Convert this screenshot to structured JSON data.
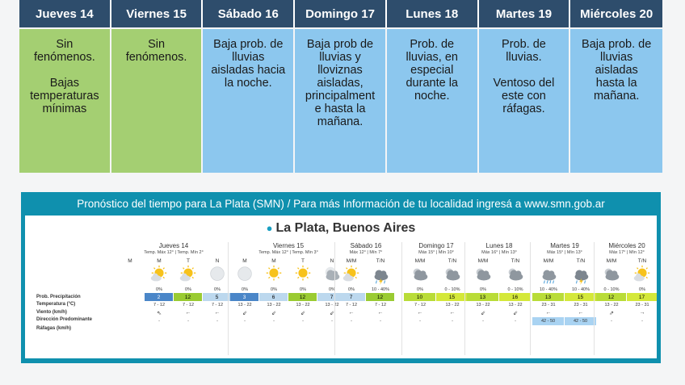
{
  "top_table": {
    "days": [
      {
        "name": "Jueves 14",
        "text": "Sin\nfenómenos.\n\nBajas\ntemperaturas\nmínimas",
        "color": "#a4cf72"
      },
      {
        "name": "Viernes 15",
        "text": "Sin\nfenómenos.",
        "color": "#a4cf72"
      },
      {
        "name": "Sábado 16",
        "text": "Baja prob. de\nlluvias\naisladas hacia\nla noche.",
        "color": "#8cc7ee"
      },
      {
        "name": "Domingo 17",
        "text": "Baja prob de\nlluvias y\nlloviznas\naisladas,\nprincipalment\ne hasta la\nmañana.",
        "color": "#8cc7ee"
      },
      {
        "name": "Lunes 18",
        "text": "Prob. de\nlluvias, en\nespecial\ndurante la\nnoche.",
        "color": "#8cc7ee"
      },
      {
        "name": "Martes 19",
        "text": "Prob. de\nlluvias.\n\nVentoso del\neste con\nráfagas.",
        "color": "#8cc7ee"
      },
      {
        "name": "Miércoles 20",
        "text": "Baja prob. de\nlluvias\naisladas\nhasta la\nmañana.",
        "color": "#8cc7ee"
      }
    ]
  },
  "forecast": {
    "banner": "Pronóstico del tiempo para La Plata (SMN) / Para más Información de tu localidad ingresá a www.smn.gob.ar",
    "city": "La Plata, Buenos Aires",
    "row_labels": [
      "Prob. Precipitación",
      "Temperatura (°C)",
      "Viento (km/h)",
      "Dirección Predominante",
      "Ráfagas (km/h)"
    ],
    "days": [
      {
        "name": "Jueves 14",
        "temps": "Temp. Máx 12° | Temp. Mín 2°",
        "periods": [
          {
            "label": "M",
            "icon": "blank-icon",
            "prob": "",
            "temp": "",
            "tcolor": "#fff",
            "wind": "",
            "dir": "",
            "gust": ""
          },
          {
            "label": "M",
            "icon": "sun-cloud-icon",
            "prob": "0%",
            "temp": "2",
            "tcolor": "#4a86c8",
            "wind": "7 - 12",
            "dir": "⇖",
            "gust": "-"
          },
          {
            "label": "T",
            "icon": "sun-cloud-icon",
            "prob": "0%",
            "temp": "12",
            "tcolor": "#9acb32",
            "wind": "7 - 12",
            "dir": "←",
            "gust": "-"
          },
          {
            "label": "N",
            "icon": "moon-icon",
            "prob": "0%",
            "temp": "5",
            "tcolor": "#bcd8ee",
            "wind": "7 - 12",
            "dir": "←",
            "gust": "-"
          }
        ]
      },
      {
        "name": "Viernes 15",
        "temps": "Temp. Máx 12° | Temp. Mín 3°",
        "periods": [
          {
            "label": "M",
            "icon": "moon-icon",
            "prob": "0%",
            "temp": "3",
            "tcolor": "#4a86c8",
            "wind": "13 - 22",
            "dir": "⇙",
            "gust": "-"
          },
          {
            "label": "M",
            "icon": "sun-icon",
            "prob": "0%",
            "temp": "6",
            "tcolor": "#bcd8ee",
            "wind": "13 - 22",
            "dir": "⇙",
            "gust": "-"
          },
          {
            "label": "T",
            "icon": "sun-icon",
            "prob": "0%",
            "temp": "12",
            "tcolor": "#9acb32",
            "wind": "13 - 22",
            "dir": "⇙",
            "gust": "-"
          },
          {
            "label": "N",
            "icon": "moon-cloud-icon",
            "prob": "0%",
            "temp": "7",
            "tcolor": "#bcd8ee",
            "wind": "13 - 22",
            "dir": "⇙",
            "gust": "-"
          }
        ]
      },
      {
        "name": "Sábado 16",
        "temps": "Máx 12° | Mín 7°",
        "periods": [
          {
            "label": "M/M",
            "icon": "sun-cloud-icon",
            "prob": "0%",
            "temp": "7",
            "tcolor": "#bcd8ee",
            "wind": "7 - 12",
            "dir": "←",
            "gust": "-"
          },
          {
            "label": "T/N",
            "icon": "rain-storm-icon",
            "prob": "10 - 40%",
            "temp": "12",
            "tcolor": "#9acb32",
            "wind": "7 - 12",
            "dir": "←",
            "gust": "-"
          }
        ]
      },
      {
        "name": "Domingo 17",
        "temps": "Máx 15° | Mín 10°",
        "periods": [
          {
            "label": "M/M",
            "icon": "cloud-icon",
            "prob": "0%",
            "temp": "10",
            "tcolor": "#b9dc38",
            "wind": "7 - 12",
            "dir": "←",
            "gust": "-"
          },
          {
            "label": "T/N",
            "icon": "cloud-icon",
            "prob": "0 - 10%",
            "temp": "15",
            "tcolor": "#d4e83a",
            "wind": "13 - 22",
            "dir": "←",
            "gust": "-"
          }
        ]
      },
      {
        "name": "Lunes 18",
        "temps": "Máx 16° | Mín 13°",
        "periods": [
          {
            "label": "M/M",
            "icon": "cloud-icon",
            "prob": "0%",
            "temp": "13",
            "tcolor": "#b9dc38",
            "wind": "13 - 22",
            "dir": "⇙",
            "gust": "-"
          },
          {
            "label": "T/N",
            "icon": "cloud-icon",
            "prob": "0 - 10%",
            "temp": "16",
            "tcolor": "#d4e83a",
            "wind": "13 - 22",
            "dir": "⇙",
            "gust": "-"
          }
        ]
      },
      {
        "name": "Martes 19",
        "temps": "Máx 15° | Mín 13°",
        "periods": [
          {
            "label": "M/M",
            "icon": "rain-icon",
            "prob": "10 - 40%",
            "temp": "13",
            "tcolor": "#b9dc38",
            "wind": "23 - 31",
            "dir": "←",
            "gust": "42 - 50",
            "gcolor": "#a9d3f2"
          },
          {
            "label": "T/N",
            "icon": "rain-storm-icon",
            "prob": "10 - 40%",
            "temp": "15",
            "tcolor": "#d4e83a",
            "wind": "23 - 31",
            "dir": "←",
            "gust": "42 - 50",
            "gcolor": "#a9d3f2"
          }
        ]
      },
      {
        "name": "Miércoles 20",
        "temps": "Máx 17° | Mín 12°",
        "periods": [
          {
            "label": "M/M",
            "icon": "cloud-icon",
            "prob": "0 - 10%",
            "temp": "12",
            "tcolor": "#b9dc38",
            "wind": "13 - 22",
            "dir": "⇗",
            "gust": "-"
          },
          {
            "label": "T/N",
            "icon": "sun-cloud-icon",
            "prob": "0%",
            "temp": "17",
            "tcolor": "#d4e83a",
            "wind": "23 - 31",
            "dir": "→",
            "gust": "-"
          }
        ]
      }
    ]
  }
}
